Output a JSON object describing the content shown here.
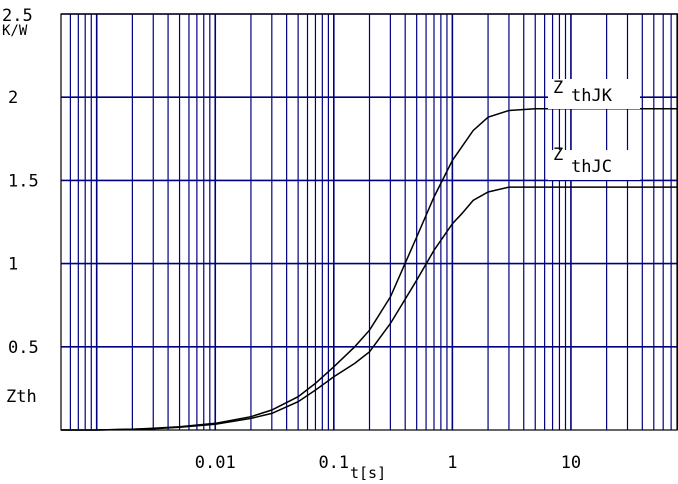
{
  "chart_data": {
    "type": "line",
    "x_scale": "log",
    "xlim": [
      0.0005,
      80
    ],
    "ylim": [
      0,
      2.5
    ],
    "xlabel": "t[s]",
    "ylabel": "Z",
    "ylabel_sub": "th",
    "y_unit": "K/W",
    "x_ticks": [
      {
        "value": 0.01,
        "label": "0.01"
      },
      {
        "value": 0.1,
        "label": "0.1"
      },
      {
        "value": 1,
        "label": "1"
      },
      {
        "value": 10,
        "label": "10"
      }
    ],
    "y_ticks": [
      {
        "value": 0.5,
        "label": "0.5"
      },
      {
        "value": 1,
        "label": "1"
      },
      {
        "value": 1.5,
        "label": "1.5"
      },
      {
        "value": 2,
        "label": "2"
      },
      {
        "value": 2.5,
        "label": "2.5"
      }
    ],
    "grid": true,
    "grid_color": "#000080",
    "line_color": "#000000",
    "series": [
      {
        "name": "Z thJK",
        "label_main": "Z",
        "label_sub": "thJK",
        "x": [
          0.0005,
          0.001,
          0.002,
          0.003,
          0.005,
          0.01,
          0.02,
          0.03,
          0.05,
          0.07,
          0.1,
          0.15,
          0.2,
          0.3,
          0.5,
          0.7,
          1,
          1.5,
          2,
          3,
          5,
          10,
          20,
          50,
          80
        ],
        "y": [
          0,
          0,
          0.005,
          0.01,
          0.02,
          0.04,
          0.08,
          0.12,
          0.2,
          0.28,
          0.38,
          0.5,
          0.6,
          0.8,
          1.16,
          1.4,
          1.62,
          1.8,
          1.88,
          1.92,
          1.93,
          1.93,
          1.93,
          1.93,
          1.93
        ]
      },
      {
        "name": "Z thJC",
        "label_main": "Z",
        "label_sub": "thJC",
        "x": [
          0.0005,
          0.001,
          0.002,
          0.003,
          0.005,
          0.01,
          0.02,
          0.03,
          0.05,
          0.07,
          0.1,
          0.15,
          0.2,
          0.3,
          0.5,
          0.7,
          1,
          1.2,
          1.5,
          2,
          3,
          5,
          10,
          20,
          50,
          80
        ],
        "y": [
          0,
          0,
          0.004,
          0.008,
          0.016,
          0.035,
          0.07,
          0.1,
          0.17,
          0.24,
          0.32,
          0.4,
          0.47,
          0.64,
          0.9,
          1.08,
          1.24,
          1.3,
          1.38,
          1.43,
          1.46,
          1.46,
          1.46,
          1.46,
          1.46,
          1.46
        ]
      }
    ]
  }
}
